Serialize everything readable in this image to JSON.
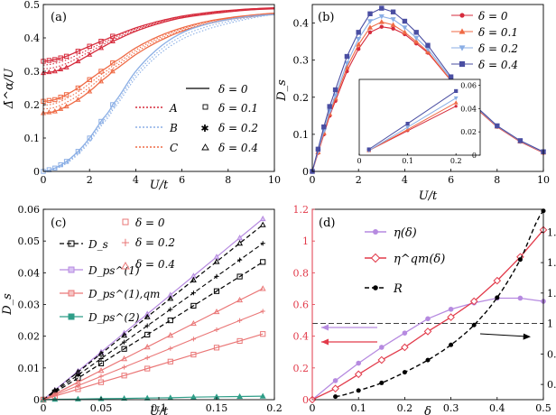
{
  "colors": {
    "red": "#d62b3c",
    "orange": "#ef6a45",
    "blue": "#8aaee5",
    "darkblue": "#4a4ea2",
    "salmon": "#ea7777",
    "purple": "#b68ae0",
    "teal": "#2f9e88",
    "pinkline": "#e23a4a",
    "black": "#000000"
  },
  "chart_data": [
    {
      "panel": "(a)",
      "type": "line",
      "xlabel": "U/t",
      "ylabel": "Δ̄^α/U",
      "xlim": [
        0,
        10
      ],
      "ylim": [
        0,
        0.5
      ],
      "xticks": [
        "0",
        "2",
        "4",
        "6",
        "8",
        "10"
      ],
      "yticks": [
        "0",
        "0.1",
        "0.2",
        "0.3",
        "0.4",
        "0.5"
      ],
      "legend": [
        "A",
        "B",
        "C"
      ],
      "legend_markers": [
        "δ = 0",
        "δ = 0.1",
        "δ = 0.2",
        "δ = 0.4"
      ],
      "series": [
        {
          "name": "A",
          "delta": "0",
          "x": [
            0,
            0.5,
            1,
            1.5,
            2,
            2.5,
            3,
            4,
            5,
            6,
            7,
            8,
            9,
            10
          ],
          "values": [
            0.33,
            0.335,
            0.345,
            0.36,
            0.375,
            0.39,
            0.405,
            0.43,
            0.45,
            0.465,
            0.475,
            0.482,
            0.487,
            0.49
          ]
        },
        {
          "name": "A",
          "delta": "0.4",
          "x": [
            0,
            0.5,
            1,
            1.5,
            2,
            2.5,
            3,
            4,
            5,
            6,
            7,
            8,
            9,
            10
          ],
          "values": [
            0.295,
            0.3,
            0.312,
            0.33,
            0.35,
            0.37,
            0.39,
            0.42,
            0.443,
            0.46,
            0.47,
            0.478,
            0.484,
            0.487
          ]
        },
        {
          "name": "C",
          "delta": "0",
          "x": [
            0,
            0.5,
            1,
            1.5,
            2,
            2.5,
            3,
            4,
            5,
            6,
            7,
            8,
            9,
            10
          ],
          "values": [
            0.21,
            0.215,
            0.23,
            0.25,
            0.275,
            0.3,
            0.325,
            0.37,
            0.405,
            0.43,
            0.448,
            0.46,
            0.468,
            0.474
          ]
        },
        {
          "name": "C",
          "delta": "0.4",
          "x": [
            0,
            0.5,
            1,
            1.5,
            2,
            2.5,
            3,
            4,
            5,
            6,
            7,
            8,
            9,
            10
          ],
          "values": [
            0.175,
            0.18,
            0.195,
            0.215,
            0.24,
            0.27,
            0.3,
            0.35,
            0.39,
            0.42,
            0.44,
            0.455,
            0.464,
            0.47
          ]
        },
        {
          "name": "B",
          "delta": "0",
          "x": [
            0,
            0.5,
            1,
            1.5,
            2,
            2.5,
            3,
            4,
            5,
            6,
            7,
            8,
            9,
            10
          ],
          "values": [
            0.0,
            0.01,
            0.03,
            0.06,
            0.1,
            0.15,
            0.2,
            0.3,
            0.37,
            0.415,
            0.44,
            0.455,
            0.465,
            0.47
          ]
        }
      ]
    },
    {
      "panel": "(b)",
      "type": "line",
      "xlabel": "U/t",
      "ylabel": "D_s",
      "xlim": [
        0,
        10
      ],
      "ylim": [
        0,
        0.45
      ],
      "xticks": [
        "0",
        "2",
        "4",
        "6",
        "8",
        "10"
      ],
      "yticks": [
        "0",
        "0.1",
        "0.2",
        "0.3",
        "0.4"
      ],
      "x": [
        0,
        0.25,
        0.5,
        0.75,
        1,
        1.5,
        2,
        2.5,
        3,
        3.5,
        4,
        4.5,
        5,
        6,
        7,
        8,
        9,
        10
      ],
      "series": [
        {
          "name": "δ = 0",
          "values": [
            0,
            0.05,
            0.1,
            0.15,
            0.19,
            0.27,
            0.33,
            0.375,
            0.39,
            0.385,
            0.37,
            0.345,
            0.32,
            0.245,
            0.175,
            0.12,
            0.08,
            0.05
          ]
        },
        {
          "name": "δ = 0.1",
          "values": [
            0,
            0.052,
            0.104,
            0.155,
            0.197,
            0.28,
            0.342,
            0.388,
            0.403,
            0.395,
            0.375,
            0.35,
            0.323,
            0.246,
            0.176,
            0.121,
            0.081,
            0.051
          ]
        },
        {
          "name": "δ = 0.2",
          "values": [
            0,
            0.055,
            0.11,
            0.162,
            0.205,
            0.292,
            0.357,
            0.405,
            0.418,
            0.41,
            0.388,
            0.36,
            0.33,
            0.25,
            0.178,
            0.122,
            0.082,
            0.052
          ]
        },
        {
          "name": "δ = 0.4",
          "values": [
            0,
            0.06,
            0.12,
            0.175,
            0.22,
            0.31,
            0.375,
            0.425,
            0.44,
            0.43,
            0.405,
            0.375,
            0.34,
            0.255,
            0.18,
            0.123,
            0.083,
            0.053
          ]
        }
      ],
      "inset": {
        "xticks": [
          "0",
          "0.1",
          "0.2"
        ],
        "yticks": [
          "0",
          "0.02",
          "0.04",
          "0.06"
        ],
        "xlim": [
          0,
          0.25
        ],
        "ylim": [
          0,
          0.065
        ],
        "x": [
          0.02,
          0.1,
          0.2
        ],
        "series": [
          {
            "name": "δ = 0",
            "values": [
              0.004,
              0.021,
              0.042
            ]
          },
          {
            "name": "δ = 0.1",
            "values": [
              0.004,
              0.022,
              0.045
            ]
          },
          {
            "name": "δ = 0.2",
            "values": [
              0.004,
              0.024,
              0.049
            ]
          },
          {
            "name": "δ = 0.4",
            "values": [
              0.005,
              0.027,
              0.055
            ]
          }
        ]
      }
    },
    {
      "panel": "(c)",
      "type": "line",
      "xlabel": "U/t",
      "ylabel": "D_s",
      "xlim": [
        0,
        0.2
      ],
      "ylim": [
        0,
        0.06
      ],
      "xticks": [
        "0",
        "0.05",
        "0.1",
        "0.15",
        "0.2"
      ],
      "yticks": [
        "0",
        "0.01",
        "0.02",
        "0.03",
        "0.04",
        "0.05",
        "0.06"
      ],
      "x": [
        0.0,
        0.01,
        0.03,
        0.05,
        0.07,
        0.09,
        0.11,
        0.13,
        0.15,
        0.17,
        0.19
      ],
      "legend": [
        "D_s",
        "D_ps^(1)",
        "D_ps^(1),qm",
        "D_ps^(2)"
      ],
      "legend_markers": [
        "δ = 0",
        "δ = 0.2",
        "δ = 0.4"
      ],
      "series": [
        {
          "name": "D_ps^(1)",
          "delta": "0.4",
          "values": [
            0,
            0.003,
            0.009,
            0.015,
            0.021,
            0.027,
            0.033,
            0.039,
            0.045,
            0.051,
            0.057
          ]
        },
        {
          "name": "D_s",
          "delta": "0.4",
          "values": [
            0,
            0.0029,
            0.0087,
            0.0145,
            0.0203,
            0.0261,
            0.0319,
            0.0377,
            0.0435,
            0.0493,
            0.0551
          ]
        },
        {
          "name": "D_s",
          "delta": "0",
          "values": [
            0,
            0.0023,
            0.0068,
            0.0114,
            0.016,
            0.0205,
            0.025,
            0.0296,
            0.0342,
            0.0388,
            0.0434
          ]
        },
        {
          "name": "D_ps^(1),qm",
          "delta": "0.4",
          "values": [
            0,
            0.0018,
            0.0055,
            0.0092,
            0.0129,
            0.0166,
            0.0203,
            0.024,
            0.0277,
            0.0314,
            0.035
          ]
        },
        {
          "name": "D_ps^(1),qm",
          "delta": "0",
          "values": [
            0,
            0.0011,
            0.0033,
            0.0055,
            0.0076,
            0.0098,
            0.012,
            0.0142,
            0.0164,
            0.0185,
            0.0207
          ]
        },
        {
          "name": "D_ps^(2)",
          "delta": "0",
          "values": [
            0,
            0.0001,
            0.0002,
            0.0003,
            0.0004,
            0.0005,
            0.0006,
            0.0008,
            0.0009,
            0.001,
            0.0011
          ]
        }
      ]
    },
    {
      "panel": "(d)",
      "type": "line",
      "xlabel": "δ",
      "xlim": [
        0,
        0.5
      ],
      "ylim_left": [
        0,
        1.2
      ],
      "ylim_right": [
        0.5,
        1.75
      ],
      "xticks": [
        "0",
        "0.1",
        "0.2",
        "0.3",
        "0.4",
        "0.5"
      ],
      "yticks_left": [
        "0",
        "0.2",
        "0.4",
        "0.6",
        "0.8",
        "1",
        "1.2"
      ],
      "yticks_right": [
        "0.6",
        "0.8",
        "1",
        "1.2",
        "1.4",
        "1.6"
      ],
      "legend": [
        "η(δ)",
        "η^qm(δ)",
        "R"
      ],
      "hline_right": 1.0,
      "x": [
        0,
        0.05,
        0.1,
        0.15,
        0.2,
        0.25,
        0.3,
        0.35,
        0.4,
        0.45,
        0.5
      ],
      "series": [
        {
          "name": "η(δ)",
          "axis": "left",
          "values": [
            0,
            0.12,
            0.23,
            0.33,
            0.42,
            0.51,
            0.57,
            0.61,
            0.64,
            0.64,
            0.62
          ]
        },
        {
          "name": "η^qm(δ)",
          "axis": "left",
          "values": [
            0,
            0.07,
            0.16,
            0.25,
            0.33,
            0.43,
            0.52,
            0.62,
            0.75,
            0.9,
            1.07
          ]
        },
        {
          "name": "R",
          "axis": "right",
          "x": [
            0.05,
            0.1,
            0.15,
            0.2,
            0.25,
            0.3,
            0.35,
            0.4,
            0.45,
            0.5
          ],
          "values": [
            0.52,
            0.56,
            0.61,
            0.68,
            0.76,
            0.86,
            0.99,
            1.17,
            1.42,
            1.74
          ]
        }
      ]
    }
  ]
}
